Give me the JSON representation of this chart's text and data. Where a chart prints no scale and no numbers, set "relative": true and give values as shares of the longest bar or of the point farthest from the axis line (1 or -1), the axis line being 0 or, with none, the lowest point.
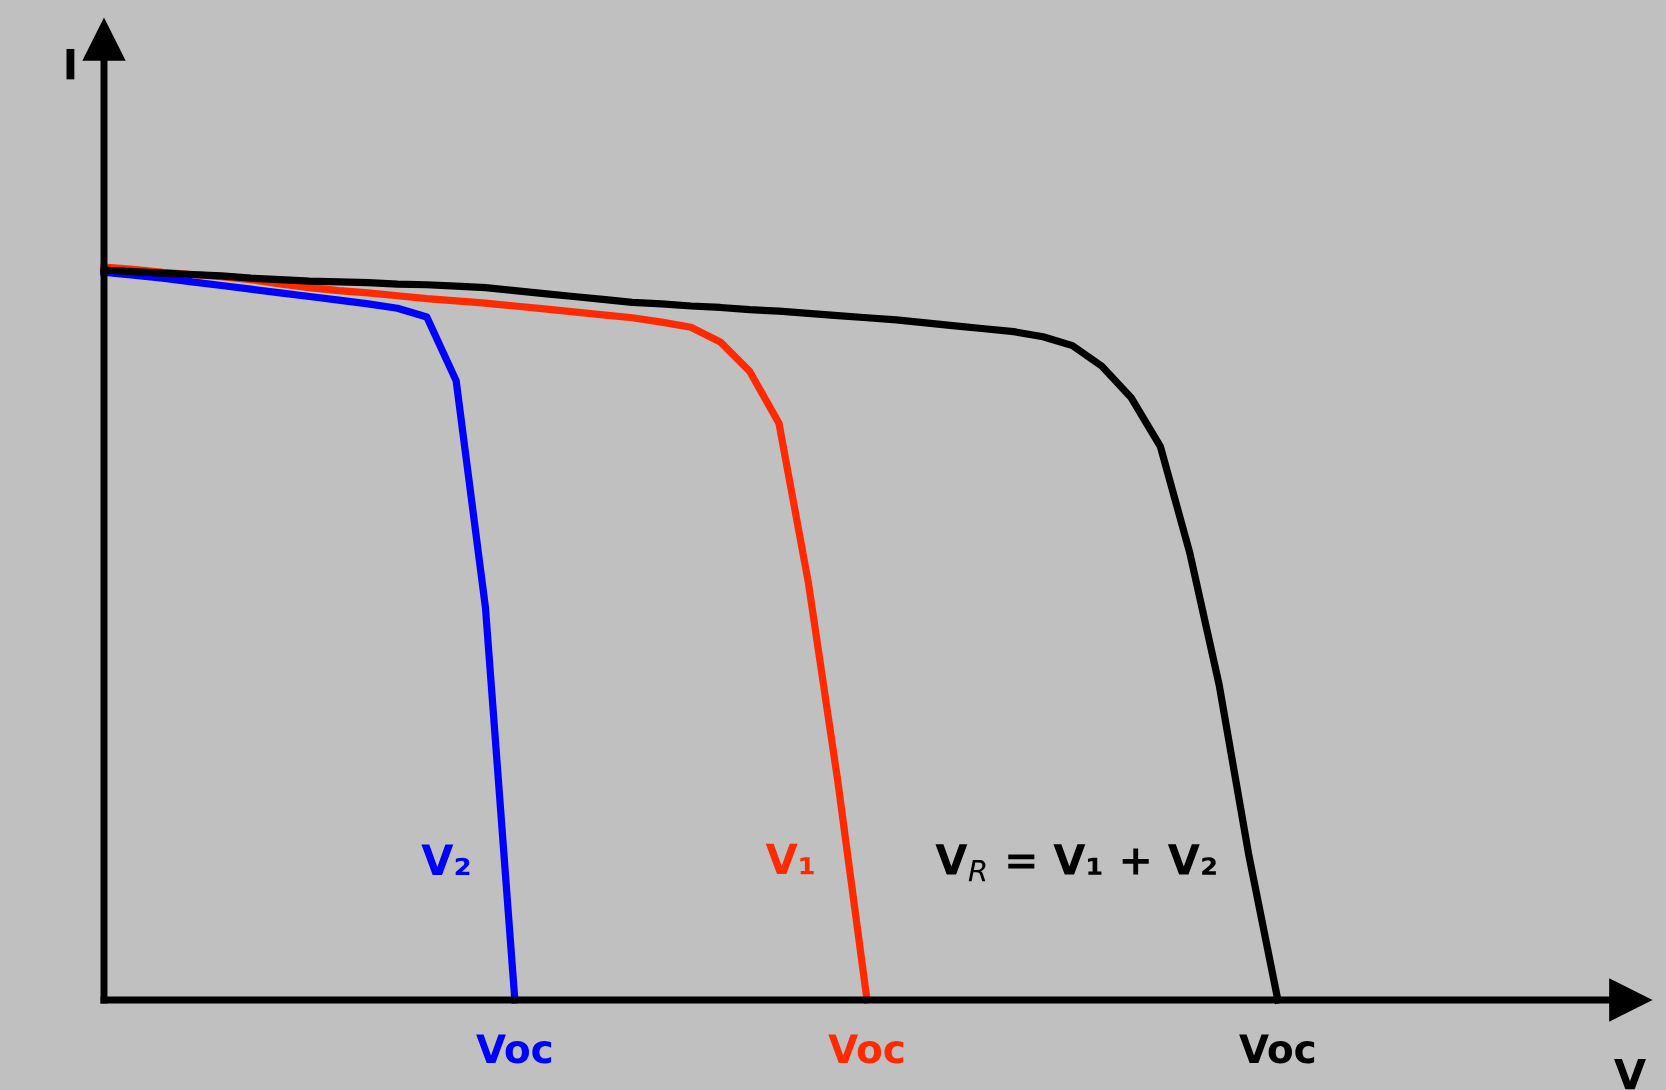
{
  "chart_data": {
    "type": "line",
    "relative": true,
    "xlabel": "V",
    "ylabel": "I",
    "categories": [
      null,
      null,
      null,
      null,
      null,
      null,
      null,
      null,
      null,
      null,
      null,
      null,
      null,
      null,
      null,
      null,
      null,
      null,
      null,
      null,
      null,
      null,
      null,
      null,
      null,
      null,
      null,
      null,
      null,
      null,
      null,
      null,
      null,
      null,
      null,
      null,
      null,
      null,
      null,
      null,
      null,
      null,
      null,
      null,
      null,
      null,
      null,
      null,
      null,
      null,
      null,
      null,
      null
    ],
    "annotations": [
      "Voc",
      "Voc",
      "Voc"
    ],
    "marker": "none",
    "line_style": "solid",
    "series": [
      {
        "name": "V₂",
        "color": "#0000ff",
        "values": [
          0.993,
          0.989,
          0.985,
          0.98,
          0.975,
          0.97,
          0.965,
          0.96,
          0.955,
          0.95,
          0.944,
          0.932,
          0.845,
          0.535,
          0,
          null,
          null,
          null,
          null,
          null,
          null,
          null,
          null,
          null,
          null,
          null,
          null,
          null,
          null,
          null,
          null,
          null,
          null,
          null,
          null,
          null,
          null,
          null,
          null,
          null,
          null,
          null,
          null,
          null,
          null,
          null,
          null,
          null,
          null,
          null,
          null,
          null,
          null
        ]
      },
      {
        "name": "V₁",
        "color": "#ff2a00",
        "values": [
          1,
          0.997,
          0.993,
          0.99,
          0.987,
          0.983,
          0.977,
          0.972,
          0.968,
          0.965,
          0.961,
          0.957,
          0.954,
          0.951,
          0.947,
          0.943,
          0.939,
          0.935,
          0.931,
          0.925,
          0.918,
          0.898,
          0.858,
          0.787,
          0.57,
          0.3,
          0,
          null,
          null,
          null,
          null,
          null,
          null,
          null,
          null,
          null,
          null,
          null,
          null,
          null,
          null,
          null,
          null,
          null,
          null,
          null,
          null,
          null,
          null,
          null,
          null,
          null,
          null
        ]
      },
      {
        "name": "V$_{R}$ = V₁ + V₂",
        "color": "#000000",
        "values": [
          0.996,
          0.994,
          0.992,
          0.99,
          0.988,
          0.985,
          0.983,
          0.981,
          0.98,
          0.979,
          0.977,
          0.976,
          0.974,
          0.972,
          0.968,
          0.964,
          0.96,
          0.956,
          0.952,
          0.95,
          0.947,
          0.945,
          0.942,
          0.94,
          0.937,
          0.934,
          0.931,
          0.928,
          0.924,
          0.92,
          0.916,
          0.912,
          0.905,
          0.893,
          0.865,
          0.822,
          0.755,
          0.61,
          0.43,
          0.2,
          0,
          null,
          null,
          null,
          null,
          null,
          null,
          null,
          null,
          null,
          null,
          null,
          null
        ]
      }
    ]
  }
}
